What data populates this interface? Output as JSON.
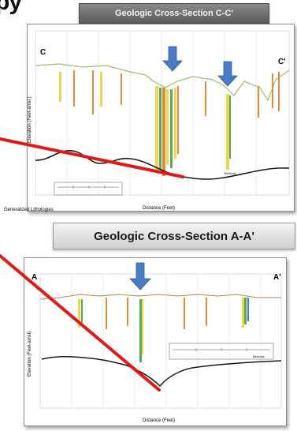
{
  "slide": {
    "partial_heading": "py"
  },
  "section_cc": {
    "title": "Geologic Cross-Section C-C'",
    "left_label": "C",
    "right_label": "C'",
    "y_axis_label": "Elevation (Feet-amsl )",
    "x_axis_label": "Distance (Feet)",
    "bottom_left_caption": "Generalized Lithologies",
    "bedrock_label": "Bedrock"
  },
  "section_aa": {
    "title": "Geologic Cross-Section A-A'",
    "left_label": "A",
    "right_label": "A'",
    "y_axis_label": "Elevation (Feet-amsl)",
    "x_axis_label": "Distance (Feet)",
    "bedrock_label": "Bedrock"
  },
  "colors": {
    "red_line": "#e01818",
    "arrow_blue": "#4a7cc4",
    "ground_surface": "#9bbf6a",
    "bedrock": "#1a1a1a",
    "log_yellow": "#e8d84a",
    "log_orange": "#e08a3a",
    "log_green": "#5aa85a"
  }
}
